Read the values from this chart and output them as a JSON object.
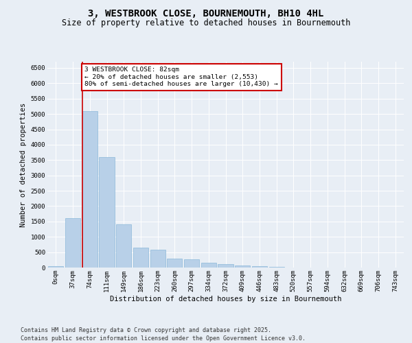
{
  "title_line1": "3, WESTBROOK CLOSE, BOURNEMOUTH, BH10 4HL",
  "title_line2": "Size of property relative to detached houses in Bournemouth",
  "xlabel": "Distribution of detached houses by size in Bournemouth",
  "ylabel": "Number of detached properties",
  "footer_line1": "Contains HM Land Registry data © Crown copyright and database right 2025.",
  "footer_line2": "Contains public sector information licensed under the Open Government Licence v3.0.",
  "bar_labels": [
    "0sqm",
    "37sqm",
    "74sqm",
    "111sqm",
    "149sqm",
    "186sqm",
    "223sqm",
    "260sqm",
    "297sqm",
    "334sqm",
    "372sqm",
    "409sqm",
    "446sqm",
    "483sqm",
    "520sqm",
    "557sqm",
    "594sqm",
    "632sqm",
    "669sqm",
    "706sqm",
    "743sqm"
  ],
  "bar_values": [
    55,
    1600,
    5100,
    3600,
    1400,
    650,
    580,
    300,
    270,
    155,
    115,
    75,
    45,
    18,
    10,
    5,
    3,
    2,
    1,
    1,
    0
  ],
  "bar_color": "#b8d0e8",
  "bar_edge_color": "#7aafd4",
  "highlight_bar_index": 2,
  "highlight_line_color": "#cc0000",
  "annotation_text": "3 WESTBROOK CLOSE: 82sqm\n← 20% of detached houses are smaller (2,553)\n80% of semi-detached houses are larger (10,430) →",
  "annotation_box_color": "#ffffff",
  "annotation_box_edge_color": "#cc0000",
  "ylim": [
    0,
    6700
  ],
  "yticks": [
    0,
    500,
    1000,
    1500,
    2000,
    2500,
    3000,
    3500,
    4000,
    4500,
    5000,
    5500,
    6000,
    6500
  ],
  "bg_color": "#e8eef5",
  "plot_bg_color": "#e8eef5",
  "title_fontsize": 10,
  "subtitle_fontsize": 8.5,
  "axis_label_fontsize": 7.5,
  "tick_fontsize": 6.5,
  "annotation_fontsize": 6.8
}
